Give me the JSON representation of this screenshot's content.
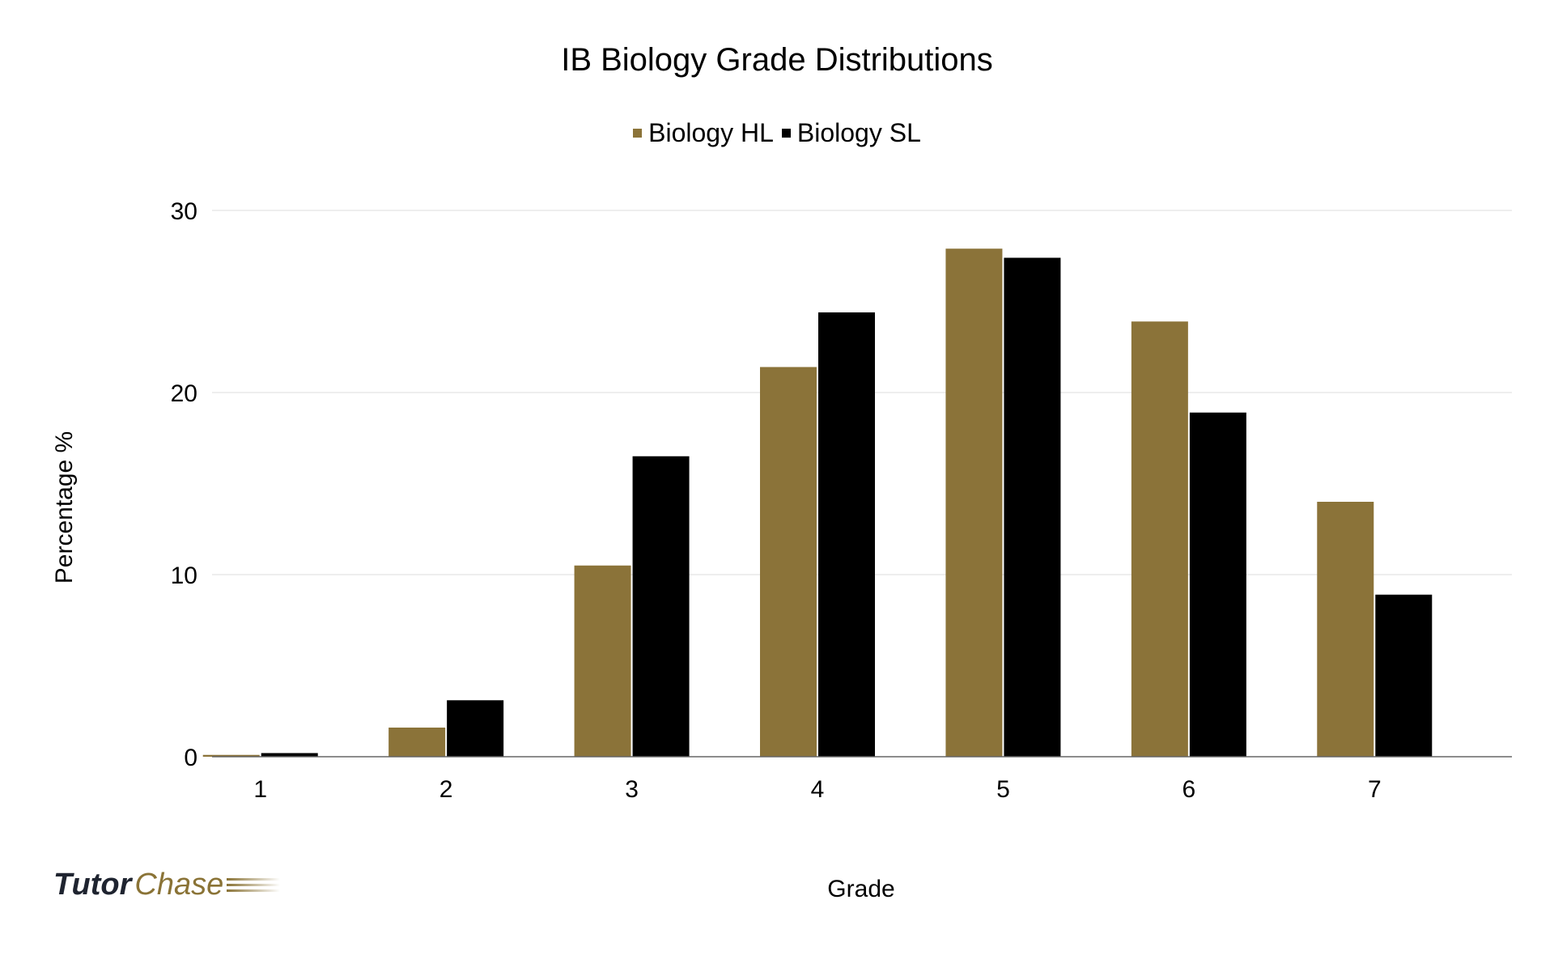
{
  "chart_data": {
    "type": "bar",
    "title": "IB Biology Grade Distributions",
    "xlabel": "Grade",
    "ylabel": "Percentage %",
    "categories": [
      "1",
      "2",
      "3",
      "4",
      "5",
      "6",
      "7"
    ],
    "series": [
      {
        "name": "Biology HL",
        "color": "#8b7339",
        "values": [
          0.1,
          1.6,
          10.5,
          21.4,
          27.9,
          23.9,
          14.0
        ]
      },
      {
        "name": "Biology SL",
        "color": "#000000",
        "values": [
          0.2,
          3.1,
          16.5,
          24.4,
          27.4,
          18.9,
          8.9
        ]
      }
    ],
    "ylim": [
      0,
      30
    ],
    "yticks": [
      0,
      10,
      20,
      30
    ],
    "grid": true,
    "legend": "top-center"
  },
  "logo": {
    "part1": "Tutor",
    "part2": "Chase"
  }
}
